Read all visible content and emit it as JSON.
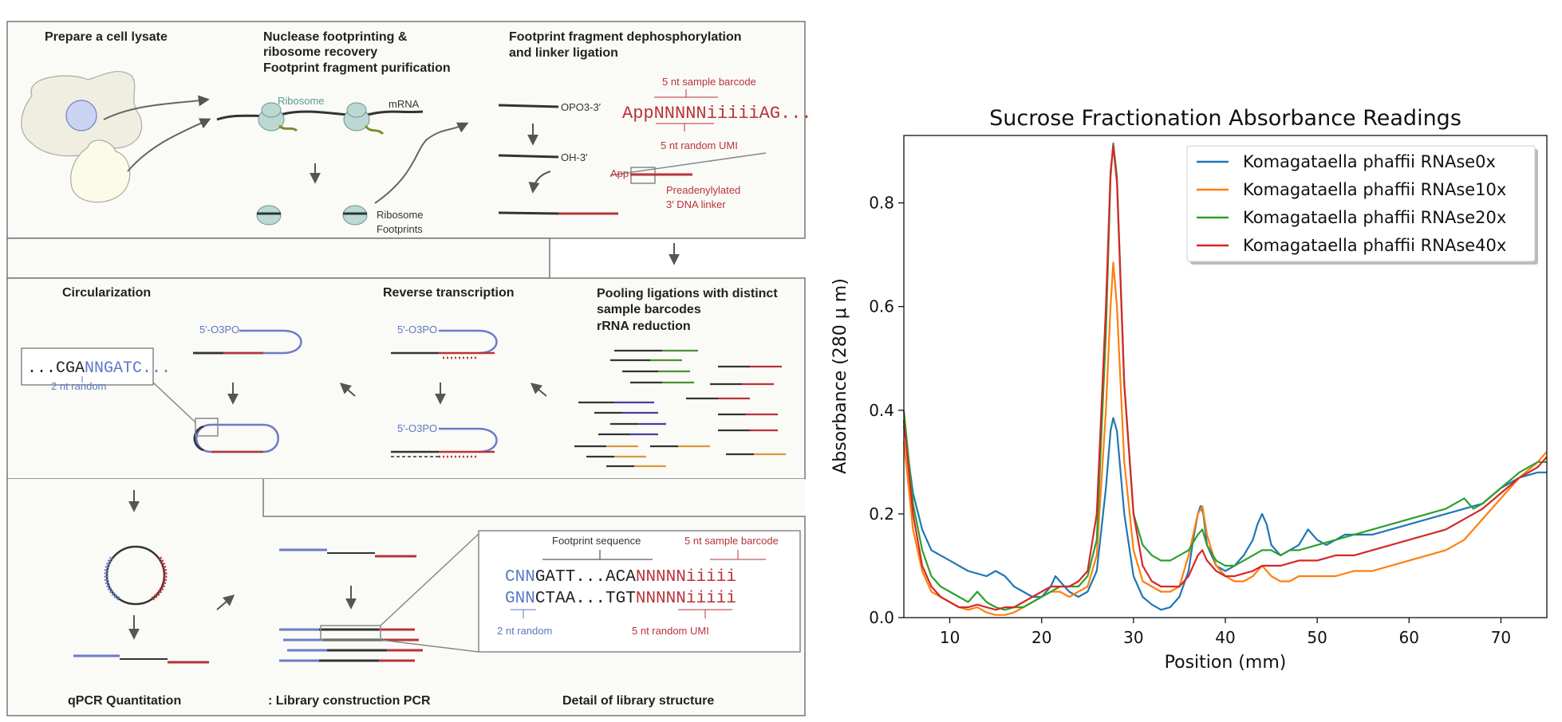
{
  "diagram": {
    "panel1": {
      "step1": "Prepare a cell lysate",
      "step2_line1": "Nuclease footprinting &",
      "step2_line2": "ribosome recovery",
      "step2_line3": "Footprint fragment purification",
      "step3_line1": "Footprint fragment dephosphorylation",
      "step3_line2": "and linker ligation",
      "ribosome": "Ribosome",
      "mrna": "mRNA",
      "footprints_line1": "Ribosome",
      "footprints_line2": "Footprints",
      "opo3": "OPO3-3′",
      "oh3": "OH-3′",
      "barcode_label": "5 nt sample barcode",
      "barcode_seq": "AppNNNNNiiiiiAG...",
      "umi_label": "5 nt random UMI",
      "app": "App",
      "linker_line1": "Preadenylylated",
      "linker_line2": "3′ DNA linker"
    },
    "panel2": {
      "circ": "Circularization",
      "rt": "Reverse transcription",
      "pool_line1": "Pooling ligations with distinct",
      "pool_line2": "sample barcodes",
      "pool_line3": "rRNA reduction",
      "seq_black": "...CGA",
      "seq_blue": "NNGATC...",
      "random2": "2 nt random",
      "phos": "5′-O3PO"
    },
    "panel3": {
      "qpcr": "qPCR Quantitation",
      "libpcr": ": Library construction PCR",
      "detail": "Detail of library structure",
      "fp_seq": "Footprint sequence",
      "barcode_label": "5 nt sample barcode",
      "row1_blue": "CNN",
      "row1_black": "GATT...ACA",
      "row1_red": "NNNNNiiiii",
      "row2_blue": "GNN",
      "row2_black": "CTAA...TGT",
      "row2_red": "NNNNNiiiii",
      "random2": "2 nt random",
      "umi_label": "5 nt random UMI"
    }
  },
  "chart_data": {
    "type": "line",
    "title": "Sucrose Fractionation Absorbance Readings",
    "xlabel": "Position (mm)",
    "ylabel": "Absorbance (280 μ m)",
    "xlim": [
      5,
      75
    ],
    "ylim": [
      0,
      0.93
    ],
    "xticks": [
      10,
      20,
      30,
      40,
      50,
      60,
      70
    ],
    "yticks": [
      0.0,
      0.2,
      0.4,
      0.6,
      0.8
    ],
    "legend_position": "top-right",
    "grid": false,
    "series": [
      {
        "name": "Komagataella phaffii RNAse0x",
        "color": "#1f77b4",
        "x": [
          5,
          6,
          7,
          8,
          10,
          12,
          14,
          15,
          16,
          17,
          18,
          19,
          20,
          21,
          21.5,
          22,
          23,
          24,
          25,
          26,
          27,
          27.5,
          27.8,
          28.2,
          29,
          30,
          31,
          32,
          33,
          34,
          35,
          36,
          36.5,
          37,
          37.3,
          37.6,
          38,
          39,
          40,
          41,
          42,
          43,
          43.5,
          44,
          44.5,
          45,
          46,
          47,
          48,
          49,
          50,
          51,
          52,
          53,
          54,
          56,
          58,
          60,
          62,
          64,
          66,
          68,
          70,
          72,
          74,
          75
        ],
        "y": [
          0.37,
          0.24,
          0.17,
          0.13,
          0.11,
          0.09,
          0.08,
          0.09,
          0.08,
          0.06,
          0.05,
          0.04,
          0.04,
          0.06,
          0.08,
          0.07,
          0.05,
          0.04,
          0.05,
          0.09,
          0.25,
          0.36,
          0.385,
          0.36,
          0.2,
          0.08,
          0.04,
          0.025,
          0.015,
          0.02,
          0.04,
          0.09,
          0.15,
          0.2,
          0.215,
          0.2,
          0.14,
          0.1,
          0.09,
          0.1,
          0.12,
          0.15,
          0.18,
          0.2,
          0.18,
          0.14,
          0.12,
          0.13,
          0.14,
          0.17,
          0.15,
          0.14,
          0.15,
          0.16,
          0.16,
          0.16,
          0.17,
          0.18,
          0.19,
          0.2,
          0.21,
          0.22,
          0.25,
          0.27,
          0.28,
          0.28
        ]
      },
      {
        "name": "Komagataella phaffii RNAse10x",
        "color": "#ff7f0e",
        "x": [
          5,
          6,
          7,
          8,
          9,
          10,
          11,
          12,
          13,
          14,
          15,
          16,
          17,
          18,
          19,
          20,
          21,
          22,
          23,
          24,
          25,
          26,
          27,
          27.5,
          27.8,
          28.2,
          29,
          30,
          31,
          32,
          33,
          34,
          35,
          36,
          37,
          37.5,
          38,
          39,
          40,
          41,
          42,
          43,
          44,
          45,
          46,
          47,
          48,
          50,
          52,
          54,
          56,
          58,
          60,
          62,
          64,
          66,
          68,
          70,
          72,
          74,
          75
        ],
        "y": [
          0.34,
          0.17,
          0.09,
          0.05,
          0.04,
          0.03,
          0.02,
          0.015,
          0.02,
          0.01,
          0.005,
          0.005,
          0.01,
          0.02,
          0.03,
          0.04,
          0.05,
          0.05,
          0.04,
          0.05,
          0.06,
          0.12,
          0.4,
          0.6,
          0.685,
          0.6,
          0.3,
          0.13,
          0.07,
          0.06,
          0.05,
          0.05,
          0.06,
          0.12,
          0.2,
          0.215,
          0.16,
          0.1,
          0.08,
          0.07,
          0.07,
          0.08,
          0.1,
          0.08,
          0.07,
          0.07,
          0.08,
          0.08,
          0.08,
          0.09,
          0.09,
          0.1,
          0.11,
          0.12,
          0.13,
          0.15,
          0.19,
          0.23,
          0.27,
          0.3,
          0.32
        ]
      },
      {
        "name": "Komagataella phaffii RNAse20x",
        "color": "#2ca02c",
        "x": [
          5,
          6,
          7,
          8,
          9,
          10,
          11,
          12,
          13,
          14,
          15,
          16,
          17,
          18,
          19,
          20,
          21,
          22,
          23,
          24,
          25,
          26,
          27,
          27.5,
          27.8,
          28.2,
          29,
          30,
          31,
          32,
          33,
          34,
          35,
          36,
          37,
          37.5,
          38,
          39,
          40,
          41,
          42,
          43,
          44,
          45,
          46,
          47,
          48,
          50,
          52,
          54,
          56,
          58,
          60,
          62,
          64,
          65,
          66,
          67,
          68,
          70,
          72,
          74,
          75
        ],
        "y": [
          0.4,
          0.22,
          0.13,
          0.08,
          0.06,
          0.05,
          0.04,
          0.03,
          0.05,
          0.03,
          0.02,
          0.015,
          0.02,
          0.02,
          0.03,
          0.04,
          0.05,
          0.06,
          0.06,
          0.06,
          0.08,
          0.15,
          0.55,
          0.85,
          0.915,
          0.85,
          0.45,
          0.2,
          0.14,
          0.12,
          0.11,
          0.11,
          0.12,
          0.13,
          0.16,
          0.17,
          0.14,
          0.11,
          0.1,
          0.1,
          0.11,
          0.12,
          0.13,
          0.13,
          0.12,
          0.13,
          0.13,
          0.14,
          0.15,
          0.16,
          0.17,
          0.18,
          0.19,
          0.2,
          0.21,
          0.22,
          0.23,
          0.21,
          0.22,
          0.25,
          0.28,
          0.3,
          0.3
        ]
      },
      {
        "name": "Komagataella phaffii RNAse40x",
        "color": "#d62728",
        "x": [
          5,
          6,
          7,
          8,
          9,
          10,
          11,
          12,
          13,
          14,
          15,
          16,
          17,
          18,
          19,
          20,
          21,
          22,
          23,
          24,
          25,
          26,
          27,
          27.5,
          27.8,
          28.2,
          29,
          30,
          31,
          32,
          33,
          34,
          35,
          36,
          37,
          37.5,
          38,
          39,
          40,
          41,
          42,
          43,
          44,
          45,
          46,
          48,
          50,
          52,
          54,
          56,
          58,
          60,
          62,
          64,
          66,
          68,
          70,
          72,
          74,
          75
        ],
        "y": [
          0.38,
          0.2,
          0.1,
          0.06,
          0.04,
          0.03,
          0.02,
          0.02,
          0.025,
          0.02,
          0.015,
          0.02,
          0.02,
          0.03,
          0.04,
          0.05,
          0.06,
          0.06,
          0.06,
          0.07,
          0.09,
          0.2,
          0.6,
          0.86,
          0.91,
          0.84,
          0.45,
          0.2,
          0.1,
          0.07,
          0.06,
          0.06,
          0.06,
          0.08,
          0.12,
          0.13,
          0.11,
          0.09,
          0.08,
          0.08,
          0.085,
          0.09,
          0.1,
          0.1,
          0.1,
          0.11,
          0.11,
          0.12,
          0.12,
          0.13,
          0.14,
          0.15,
          0.16,
          0.17,
          0.19,
          0.21,
          0.24,
          0.27,
          0.29,
          0.31
        ]
      }
    ]
  }
}
